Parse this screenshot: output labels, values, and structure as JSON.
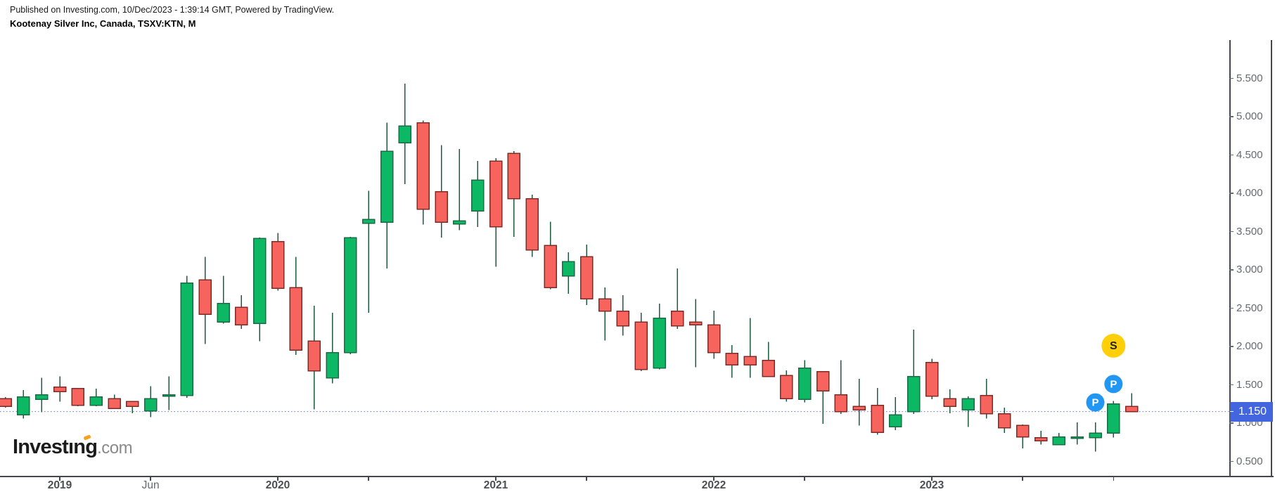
{
  "header": {
    "published_line": "Published on Investing.com, 10/Dec/2023 - 1:39:14 GMT, Powered by TradingView.",
    "instrument_title": "Kootenay Silver Inc, Canada, TSXV:KTN, M"
  },
  "logo": {
    "part1": "Invest",
    "i_char": "ı",
    "part2": "ng",
    "suffix": ".com"
  },
  "colors": {
    "background": "#FFFFFF",
    "candle_up_fill": "#0CB863",
    "candle_up_stroke": "#1A6B45",
    "candle_down_fill": "#F7645E",
    "candle_down_stroke": "#7E2B26",
    "wick": "#1D5B41",
    "price_line": "#5B79EC",
    "price_tag_bg": "#4366DF",
    "price_tag_text": "#FFFFFF",
    "axis_line": "#44474F",
    "axis_text": "#66696F",
    "year_text": "#4D4F54",
    "marker_p_bg": "#2196F3",
    "marker_p_text": "#FFFFFF",
    "marker_s_bg": "#FFD008",
    "marker_s_text": "#222222",
    "logo_accent": "#F9A11B"
  },
  "chart_data": {
    "type": "candlestick",
    "title": "Kootenay Silver Inc, Canada, TSXV:KTN, Monthly",
    "timeframe": "M",
    "x_range": [
      "2018-10",
      "2023-12"
    ],
    "ylim": [
      0.31,
      6.02
    ],
    "grid": false,
    "current_price": {
      "value": 1.15,
      "label": "1.150"
    },
    "y_axis": {
      "ticks": [
        {
          "price": 5.5,
          "label": "5.500"
        },
        {
          "price": 5.0,
          "label": "5.000"
        },
        {
          "price": 4.5,
          "label": "4.500"
        },
        {
          "price": 4.0,
          "label": "4.000"
        },
        {
          "price": 3.5,
          "label": "3.500"
        },
        {
          "price": 3.0,
          "label": "3.000"
        },
        {
          "price": 2.5,
          "label": "2.500"
        },
        {
          "price": 2.0,
          "label": "2.000"
        },
        {
          "price": 1.5,
          "label": "1.500"
        },
        {
          "price": 1.0,
          "label": "1.000"
        },
        {
          "price": 0.5,
          "label": "0.500"
        }
      ]
    },
    "x_axis": {
      "ticks": [
        {
          "month": "2019-01",
          "label": "2019",
          "style": "year"
        },
        {
          "month": "2019-06",
          "label": "Jun",
          "style": "month"
        },
        {
          "month": "2020-01",
          "label": "2020",
          "style": "year"
        },
        {
          "month": "2020-06",
          "label": "",
          "style": "tick"
        },
        {
          "month": "2021-01",
          "label": "2021",
          "style": "year"
        },
        {
          "month": "2021-06",
          "label": "",
          "style": "tick"
        },
        {
          "month": "2022-01",
          "label": "2022",
          "style": "year"
        },
        {
          "month": "2022-06",
          "label": "",
          "style": "tick"
        },
        {
          "month": "2023-01",
          "label": "2023",
          "style": "year"
        },
        {
          "month": "2023-06",
          "label": "",
          "style": "tick"
        },
        {
          "month": "2023-11",
          "label": "",
          "style": "tick"
        }
      ]
    },
    "candles": [
      {
        "m": "2018-10",
        "o": 1.32,
        "h": 1.34,
        "l": 1.2,
        "c": 1.22
      },
      {
        "m": "2018-11",
        "o": 1.11,
        "h": 1.43,
        "l": 1.06,
        "c": 1.34
      },
      {
        "m": "2018-12",
        "o": 1.31,
        "h": 1.59,
        "l": 1.14,
        "c": 1.37
      },
      {
        "m": "2019-01",
        "o": 1.47,
        "h": 1.61,
        "l": 1.28,
        "c": 1.41
      },
      {
        "m": "2019-02",
        "o": 1.45,
        "h": 1.46,
        "l": 1.22,
        "c": 1.23
      },
      {
        "m": "2019-03",
        "o": 1.23,
        "h": 1.45,
        "l": 1.22,
        "c": 1.34
      },
      {
        "m": "2019-04",
        "o": 1.32,
        "h": 1.37,
        "l": 1.19,
        "c": 1.19
      },
      {
        "m": "2019-05",
        "o": 1.28,
        "h": 1.29,
        "l": 1.13,
        "c": 1.22
      },
      {
        "m": "2019-06",
        "o": 1.16,
        "h": 1.48,
        "l": 1.08,
        "c": 1.32
      },
      {
        "m": "2019-07",
        "o": 1.35,
        "h": 1.61,
        "l": 1.17,
        "c": 1.37
      },
      {
        "m": "2019-08",
        "o": 1.36,
        "h": 2.92,
        "l": 1.33,
        "c": 2.83
      },
      {
        "m": "2019-09",
        "o": 2.87,
        "h": 3.17,
        "l": 2.03,
        "c": 2.42
      },
      {
        "m": "2019-10",
        "o": 2.32,
        "h": 2.92,
        "l": 2.3,
        "c": 2.56
      },
      {
        "m": "2019-11",
        "o": 2.51,
        "h": 2.67,
        "l": 2.23,
        "c": 2.28
      },
      {
        "m": "2019-12",
        "o": 2.3,
        "h": 3.42,
        "l": 2.07,
        "c": 3.41
      },
      {
        "m": "2020-01",
        "o": 3.37,
        "h": 3.48,
        "l": 2.73,
        "c": 2.76
      },
      {
        "m": "2020-02",
        "o": 2.77,
        "h": 3.17,
        "l": 1.89,
        "c": 1.95
      },
      {
        "m": "2020-03",
        "o": 2.07,
        "h": 2.53,
        "l": 1.18,
        "c": 1.68
      },
      {
        "m": "2020-04",
        "o": 1.59,
        "h": 2.44,
        "l": 1.52,
        "c": 1.92
      },
      {
        "m": "2020-05",
        "o": 1.92,
        "h": 3.43,
        "l": 1.9,
        "c": 3.42
      },
      {
        "m": "2020-06",
        "o": 3.61,
        "h": 4.03,
        "l": 2.44,
        "c": 3.66
      },
      {
        "m": "2020-07",
        "o": 3.62,
        "h": 4.92,
        "l": 3.02,
        "c": 4.55
      },
      {
        "m": "2020-08",
        "o": 4.66,
        "h": 5.43,
        "l": 4.12,
        "c": 4.88
      },
      {
        "m": "2020-09",
        "o": 4.92,
        "h": 4.95,
        "l": 3.59,
        "c": 3.79
      },
      {
        "m": "2020-10",
        "o": 4.02,
        "h": 4.63,
        "l": 3.42,
        "c": 3.62
      },
      {
        "m": "2020-11",
        "o": 3.6,
        "h": 4.58,
        "l": 3.52,
        "c": 3.64
      },
      {
        "m": "2020-12",
        "o": 3.77,
        "h": 4.42,
        "l": 3.56,
        "c": 4.17
      },
      {
        "m": "2021-01",
        "o": 4.42,
        "h": 4.46,
        "l": 3.04,
        "c": 3.56
      },
      {
        "m": "2021-02",
        "o": 4.52,
        "h": 4.55,
        "l": 3.43,
        "c": 3.93
      },
      {
        "m": "2021-03",
        "o": 3.93,
        "h": 3.98,
        "l": 3.17,
        "c": 3.26
      },
      {
        "m": "2021-04",
        "o": 3.32,
        "h": 3.63,
        "l": 2.75,
        "c": 2.77
      },
      {
        "m": "2021-05",
        "o": 2.92,
        "h": 3.23,
        "l": 2.69,
        "c": 3.11
      },
      {
        "m": "2021-06",
        "o": 3.17,
        "h": 3.33,
        "l": 2.54,
        "c": 2.62
      },
      {
        "m": "2021-07",
        "o": 2.62,
        "h": 2.77,
        "l": 2.08,
        "c": 2.46
      },
      {
        "m": "2021-08",
        "o": 2.46,
        "h": 2.67,
        "l": 2.14,
        "c": 2.27
      },
      {
        "m": "2021-09",
        "o": 2.32,
        "h": 2.44,
        "l": 1.68,
        "c": 1.7
      },
      {
        "m": "2021-10",
        "o": 1.72,
        "h": 2.56,
        "l": 1.7,
        "c": 2.37
      },
      {
        "m": "2021-11",
        "o": 2.46,
        "h": 3.02,
        "l": 2.23,
        "c": 2.27
      },
      {
        "m": "2021-12",
        "o": 2.32,
        "h": 2.62,
        "l": 1.73,
        "c": 2.28
      },
      {
        "m": "2022-01",
        "o": 2.28,
        "h": 2.47,
        "l": 1.84,
        "c": 1.92
      },
      {
        "m": "2022-02",
        "o": 1.91,
        "h": 2.02,
        "l": 1.59,
        "c": 1.76
      },
      {
        "m": "2022-03",
        "o": 1.87,
        "h": 2.37,
        "l": 1.59,
        "c": 1.76
      },
      {
        "m": "2022-04",
        "o": 1.82,
        "h": 2.06,
        "l": 1.6,
        "c": 1.61
      },
      {
        "m": "2022-05",
        "o": 1.62,
        "h": 1.69,
        "l": 1.28,
        "c": 1.32
      },
      {
        "m": "2022-06",
        "o": 1.31,
        "h": 1.82,
        "l": 1.27,
        "c": 1.72
      },
      {
        "m": "2022-07",
        "o": 1.67,
        "h": 1.68,
        "l": 0.99,
        "c": 1.42
      },
      {
        "m": "2022-08",
        "o": 1.37,
        "h": 1.82,
        "l": 1.12,
        "c": 1.15
      },
      {
        "m": "2022-09",
        "o": 1.22,
        "h": 1.58,
        "l": 0.97,
        "c": 1.17
      },
      {
        "m": "2022-10",
        "o": 1.23,
        "h": 1.46,
        "l": 0.85,
        "c": 0.88
      },
      {
        "m": "2022-11",
        "o": 0.95,
        "h": 1.34,
        "l": 0.91,
        "c": 1.11
      },
      {
        "m": "2022-12",
        "o": 1.15,
        "h": 2.22,
        "l": 1.12,
        "c": 1.61
      },
      {
        "m": "2023-01",
        "o": 1.79,
        "h": 1.84,
        "l": 1.31,
        "c": 1.35
      },
      {
        "m": "2023-02",
        "o": 1.32,
        "h": 1.44,
        "l": 1.13,
        "c": 1.22
      },
      {
        "m": "2023-03",
        "o": 1.17,
        "h": 1.35,
        "l": 0.95,
        "c": 1.32
      },
      {
        "m": "2023-04",
        "o": 1.36,
        "h": 1.58,
        "l": 1.06,
        "c": 1.12
      },
      {
        "m": "2023-05",
        "o": 1.12,
        "h": 1.2,
        "l": 0.87,
        "c": 0.94
      },
      {
        "m": "2023-06",
        "o": 0.97,
        "h": 0.98,
        "l": 0.67,
        "c": 0.82
      },
      {
        "m": "2023-07",
        "o": 0.81,
        "h": 0.9,
        "l": 0.72,
        "c": 0.77
      },
      {
        "m": "2023-08",
        "o": 0.72,
        "h": 0.87,
        "l": 0.71,
        "c": 0.82
      },
      {
        "m": "2023-09",
        "o": 0.81,
        "h": 1.01,
        "l": 0.72,
        "c": 0.82
      },
      {
        "m": "2023-10",
        "o": 0.81,
        "h": 1.01,
        "l": 0.63,
        "c": 0.87
      },
      {
        "m": "2023-11",
        "o": 0.87,
        "h": 1.29,
        "l": 0.81,
        "c": 1.25
      },
      {
        "m": "2023-12",
        "o": 1.22,
        "h": 1.39,
        "l": 1.14,
        "c": 1.15
      }
    ],
    "markers": [
      {
        "label": "P",
        "month": "2023-10",
        "price": 1.27
      },
      {
        "label": "P",
        "month": "2023-11",
        "price": 1.51
      },
      {
        "label": "S",
        "month": "2023-11",
        "price": 2.01
      }
    ]
  }
}
